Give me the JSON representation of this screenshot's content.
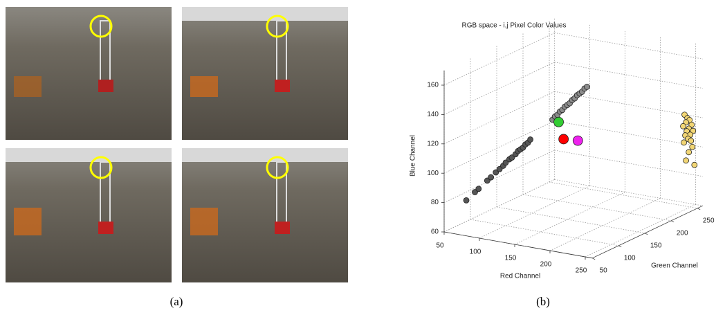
{
  "captions": [
    "(a)",
    "(b)"
  ],
  "chart_data": {
    "type": "scatter3d",
    "title": "RGB space - i,j Pixel Color Values",
    "xlabel": "Red Channel",
    "ylabel": "Green Channel",
    "zlabel": "Blue Channel",
    "xlim": [
      50,
      260
    ],
    "ylim": [
      50,
      260
    ],
    "zlim": [
      60,
      170
    ],
    "xticks": [
      50,
      100,
      150,
      200,
      250
    ],
    "yticks": [
      50,
      100,
      150,
      200,
      250
    ],
    "zticks": [
      60,
      80,
      100,
      120,
      140,
      160
    ],
    "grid": true,
    "series": [
      {
        "color": "#555555",
        "x": [
          68,
          75,
          78,
          85,
          88,
          92,
          95,
          98,
          100,
          103,
          105,
          108,
          110,
          112,
          114,
          116,
          118,
          120
        ],
        "y": [
          68,
          75,
          78,
          85,
          88,
          92,
          95,
          98,
          100,
          103,
          105,
          108,
          110,
          112,
          114,
          116,
          118,
          120
        ],
        "z": [
          80,
          85,
          87,
          92,
          94,
          97,
          99,
          101,
          103,
          105,
          106,
          108,
          110,
          111,
          112,
          114,
          115,
          117
        ]
      },
      {
        "color": "#8c8c8c",
        "x": [
          138,
          140,
          142,
          144,
          146,
          148,
          150,
          152,
          154,
          156,
          158,
          160,
          162,
          164,
          166
        ],
        "y": [
          138,
          140,
          142,
          144,
          146,
          148,
          150,
          152,
          154,
          156,
          158,
          160,
          162,
          164,
          166
        ],
        "z": [
          129,
          131,
          132,
          134,
          135,
          137,
          138,
          139,
          141,
          142,
          144,
          145,
          146,
          148,
          149
        ]
      },
      {
        "color": "#f2d675",
        "x": [
          238,
          242,
          245,
          240,
          248,
          236,
          244,
          250,
          241,
          246,
          239,
          243,
          247,
          237,
          249,
          244,
          240,
          252
        ],
        "y": [
          255,
          255,
          255,
          255,
          255,
          255,
          255,
          255,
          255,
          255,
          255,
          255,
          255,
          255,
          255,
          255,
          255,
          255
        ],
        "z": [
          121,
          119,
          118,
          116,
          115,
          113,
          112,
          111,
          110,
          108,
          107,
          105,
          104,
          102,
          100,
          96,
          90,
          88
        ]
      },
      {
        "color": "#33cc33",
        "x": [
          143
        ],
        "y": [
          143
        ],
        "z": [
          127
        ]
      },
      {
        "color": "#ff0000",
        "x": [
          147
        ],
        "y": [
          147
        ],
        "z": [
          115
        ]
      },
      {
        "color": "#ee22ee",
        "x": [
          165
        ],
        "y": [
          150
        ],
        "z": [
          115
        ]
      }
    ]
  }
}
